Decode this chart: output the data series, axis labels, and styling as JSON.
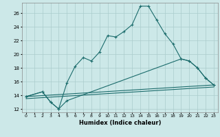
{
  "xlabel": "Humidex (Indice chaleur)",
  "bg_color": "#cce8e8",
  "grid_color": "#aacccc",
  "line_color": "#1a6b6b",
  "ylim": [
    11.5,
    27.5
  ],
  "xlim": [
    -0.5,
    23.5
  ],
  "yticks": [
    12,
    14,
    16,
    18,
    20,
    22,
    24,
    26
  ],
  "xticks": [
    0,
    1,
    2,
    3,
    4,
    5,
    6,
    7,
    8,
    9,
    10,
    11,
    12,
    13,
    14,
    15,
    16,
    17,
    18,
    19,
    20,
    21,
    22,
    23
  ],
  "line1_x": [
    0,
    2,
    3,
    4,
    5,
    6,
    7,
    8,
    9,
    10,
    11,
    12,
    13,
    14,
    15,
    16,
    17,
    18,
    19,
    20,
    21,
    22,
    23
  ],
  "line1_y": [
    13.8,
    14.5,
    13.0,
    12.0,
    15.8,
    18.2,
    19.5,
    19.0,
    20.3,
    22.7,
    22.5,
    23.3,
    24.3,
    27.0,
    27.0,
    25.0,
    23.0,
    21.5,
    19.3,
    19.0,
    18.0,
    16.5,
    15.5
  ],
  "line2_x": [
    0,
    2,
    3,
    4,
    5,
    19,
    20,
    21,
    22,
    23
  ],
  "line2_y": [
    13.8,
    14.5,
    13.0,
    12.0,
    13.2,
    19.3,
    19.0,
    18.0,
    16.5,
    15.5
  ],
  "line3_x": [
    0,
    23
  ],
  "line3_y": [
    13.5,
    15.2
  ],
  "line4_x": [
    0,
    23
  ],
  "line4_y": [
    13.8,
    15.5
  ]
}
